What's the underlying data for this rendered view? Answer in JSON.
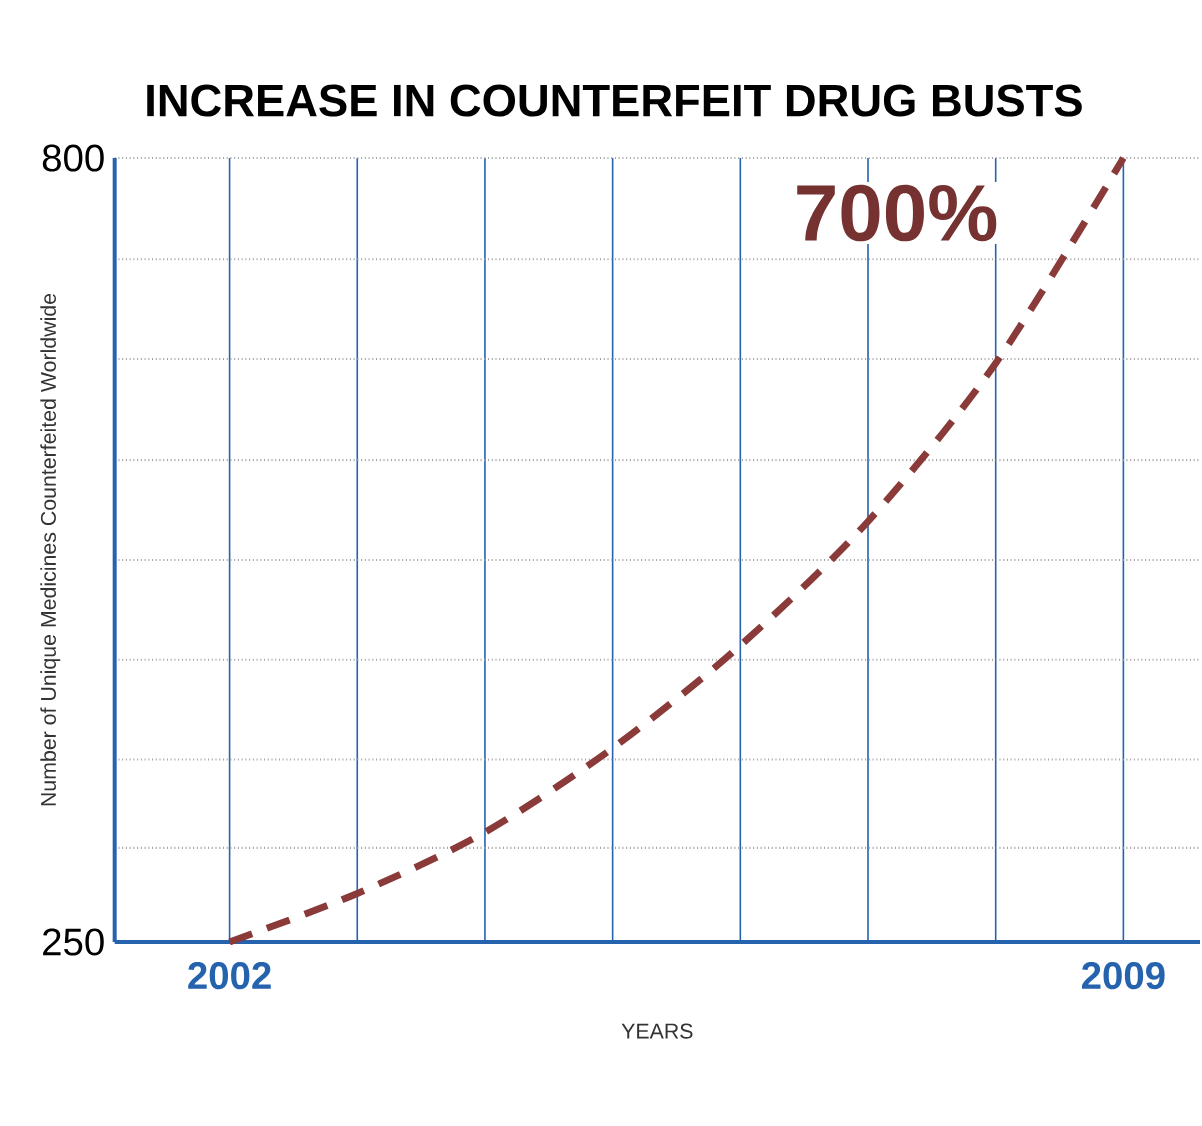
{
  "chart_data": {
    "type": "line",
    "title": "INCREASE IN COUNTERFEIT DRUG BUSTS",
    "ylabel": "Number of Unique Medicines Counterfeited Worldwide",
    "xlabel": "YEARS",
    "annotations": [
      "700%"
    ],
    "x": [
      2002,
      2003,
      2004,
      2005,
      2006,
      2007,
      2008,
      2009
    ],
    "series": [
      {
        "color": "#8b3a3a",
        "values": [
          250,
          284,
          327,
          386,
          458,
          545,
          656,
          800
        ]
      }
    ],
    "xlim": [
      2001.1,
      2009.6
    ],
    "ylim": [
      250,
      800
    ],
    "xticks": [
      2002,
      {
        "value": 2003,
        "label": null
      },
      {
        "value": 2004,
        "label": null
      },
      {
        "value": 2005,
        "label": null
      },
      {
        "value": 2006,
        "label": null
      },
      {
        "value": 2007,
        "label": null
      },
      {
        "value": 2008,
        "label": null
      },
      2009
    ],
    "yticks": [
      250,
      {
        "value": 316,
        "label": null
      },
      {
        "value": 378,
        "label": null
      },
      {
        "value": 448,
        "label": null
      },
      {
        "value": 518,
        "label": null
      },
      {
        "value": 588,
        "label": null
      },
      {
        "value": 659,
        "label": null
      },
      {
        "value": 729,
        "label": null
      },
      800
    ],
    "grid": true,
    "marker": "none",
    "line_style": "dashed"
  }
}
